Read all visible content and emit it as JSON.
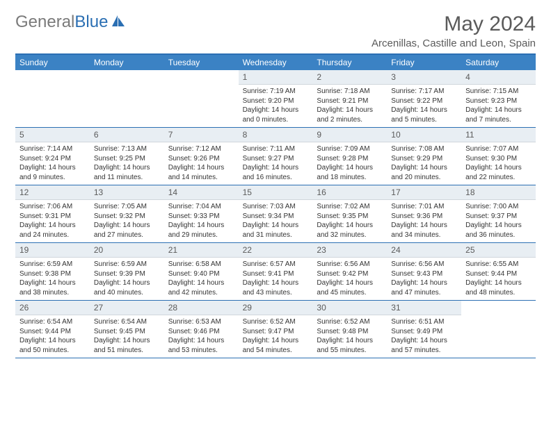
{
  "logo": {
    "gray": "General",
    "blue": "Blue"
  },
  "title": "May 2024",
  "location": "Arcenillas, Castille and Leon, Spain",
  "colors": {
    "header_blue": "#3b82c4",
    "border_blue": "#2b6fb3",
    "daynum_bg": "#e8eef3",
    "text_gray": "#5a5a5a"
  },
  "weekdays": [
    "Sunday",
    "Monday",
    "Tuesday",
    "Wednesday",
    "Thursday",
    "Friday",
    "Saturday"
  ],
  "weeks": [
    [
      {
        "empty": true
      },
      {
        "empty": true
      },
      {
        "empty": true
      },
      {
        "num": "1",
        "sunrise": "7:19 AM",
        "sunset": "9:20 PM",
        "daylight": "14 hours and 0 minutes."
      },
      {
        "num": "2",
        "sunrise": "7:18 AM",
        "sunset": "9:21 PM",
        "daylight": "14 hours and 2 minutes."
      },
      {
        "num": "3",
        "sunrise": "7:17 AM",
        "sunset": "9:22 PM",
        "daylight": "14 hours and 5 minutes."
      },
      {
        "num": "4",
        "sunrise": "7:15 AM",
        "sunset": "9:23 PM",
        "daylight": "14 hours and 7 minutes."
      }
    ],
    [
      {
        "num": "5",
        "sunrise": "7:14 AM",
        "sunset": "9:24 PM",
        "daylight": "14 hours and 9 minutes."
      },
      {
        "num": "6",
        "sunrise": "7:13 AM",
        "sunset": "9:25 PM",
        "daylight": "14 hours and 11 minutes."
      },
      {
        "num": "7",
        "sunrise": "7:12 AM",
        "sunset": "9:26 PM",
        "daylight": "14 hours and 14 minutes."
      },
      {
        "num": "8",
        "sunrise": "7:11 AM",
        "sunset": "9:27 PM",
        "daylight": "14 hours and 16 minutes."
      },
      {
        "num": "9",
        "sunrise": "7:09 AM",
        "sunset": "9:28 PM",
        "daylight": "14 hours and 18 minutes."
      },
      {
        "num": "10",
        "sunrise": "7:08 AM",
        "sunset": "9:29 PM",
        "daylight": "14 hours and 20 minutes."
      },
      {
        "num": "11",
        "sunrise": "7:07 AM",
        "sunset": "9:30 PM",
        "daylight": "14 hours and 22 minutes."
      }
    ],
    [
      {
        "num": "12",
        "sunrise": "7:06 AM",
        "sunset": "9:31 PM",
        "daylight": "14 hours and 24 minutes."
      },
      {
        "num": "13",
        "sunrise": "7:05 AM",
        "sunset": "9:32 PM",
        "daylight": "14 hours and 27 minutes."
      },
      {
        "num": "14",
        "sunrise": "7:04 AM",
        "sunset": "9:33 PM",
        "daylight": "14 hours and 29 minutes."
      },
      {
        "num": "15",
        "sunrise": "7:03 AM",
        "sunset": "9:34 PM",
        "daylight": "14 hours and 31 minutes."
      },
      {
        "num": "16",
        "sunrise": "7:02 AM",
        "sunset": "9:35 PM",
        "daylight": "14 hours and 32 minutes."
      },
      {
        "num": "17",
        "sunrise": "7:01 AM",
        "sunset": "9:36 PM",
        "daylight": "14 hours and 34 minutes."
      },
      {
        "num": "18",
        "sunrise": "7:00 AM",
        "sunset": "9:37 PM",
        "daylight": "14 hours and 36 minutes."
      }
    ],
    [
      {
        "num": "19",
        "sunrise": "6:59 AM",
        "sunset": "9:38 PM",
        "daylight": "14 hours and 38 minutes."
      },
      {
        "num": "20",
        "sunrise": "6:59 AM",
        "sunset": "9:39 PM",
        "daylight": "14 hours and 40 minutes."
      },
      {
        "num": "21",
        "sunrise": "6:58 AM",
        "sunset": "9:40 PM",
        "daylight": "14 hours and 42 minutes."
      },
      {
        "num": "22",
        "sunrise": "6:57 AM",
        "sunset": "9:41 PM",
        "daylight": "14 hours and 43 minutes."
      },
      {
        "num": "23",
        "sunrise": "6:56 AM",
        "sunset": "9:42 PM",
        "daylight": "14 hours and 45 minutes."
      },
      {
        "num": "24",
        "sunrise": "6:56 AM",
        "sunset": "9:43 PM",
        "daylight": "14 hours and 47 minutes."
      },
      {
        "num": "25",
        "sunrise": "6:55 AM",
        "sunset": "9:44 PM",
        "daylight": "14 hours and 48 minutes."
      }
    ],
    [
      {
        "num": "26",
        "sunrise": "6:54 AM",
        "sunset": "9:44 PM",
        "daylight": "14 hours and 50 minutes."
      },
      {
        "num": "27",
        "sunrise": "6:54 AM",
        "sunset": "9:45 PM",
        "daylight": "14 hours and 51 minutes."
      },
      {
        "num": "28",
        "sunrise": "6:53 AM",
        "sunset": "9:46 PM",
        "daylight": "14 hours and 53 minutes."
      },
      {
        "num": "29",
        "sunrise": "6:52 AM",
        "sunset": "9:47 PM",
        "daylight": "14 hours and 54 minutes."
      },
      {
        "num": "30",
        "sunrise": "6:52 AM",
        "sunset": "9:48 PM",
        "daylight": "14 hours and 55 minutes."
      },
      {
        "num": "31",
        "sunrise": "6:51 AM",
        "sunset": "9:49 PM",
        "daylight": "14 hours and 57 minutes."
      },
      {
        "empty": true
      }
    ]
  ]
}
